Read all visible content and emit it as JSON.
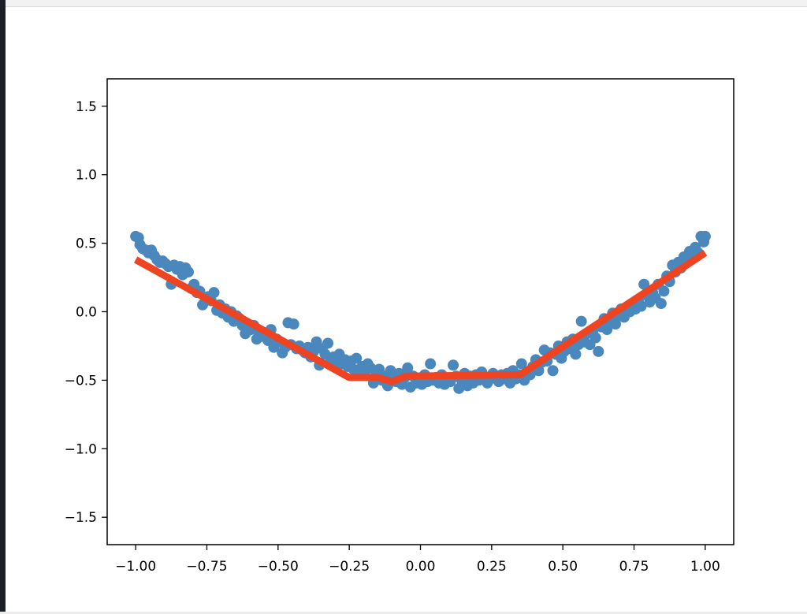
{
  "colors": {
    "scatter": "#4a87bd",
    "line": "#ee4422",
    "axes": "#000000"
  },
  "chart_data": {
    "type": "scatter",
    "title": "",
    "xlabel": "",
    "ylabel": "",
    "xlim": [
      -1.1,
      1.1
    ],
    "ylim": [
      -1.7,
      1.7
    ],
    "xticks": [
      -1.0,
      -0.75,
      -0.5,
      -0.25,
      0.0,
      0.25,
      0.5,
      0.75,
      1.0
    ],
    "xtick_labels": [
      "−1.00",
      "−0.75",
      "−0.50",
      "−0.25",
      "0.00",
      "0.25",
      "0.50",
      "0.75",
      "1.00"
    ],
    "yticks": [
      1.5,
      1.0,
      0.5,
      0.0,
      -0.5,
      -1.0,
      -1.5
    ],
    "ytick_labels": [
      "1.5",
      "1.0",
      "0.5",
      "0.0",
      "−0.5",
      "−1.0",
      "−1.5"
    ],
    "grid": false,
    "series": [
      {
        "kind": "scatter",
        "points": [
          [
            -1.0,
            0.55
          ],
          [
            -0.99,
            0.54
          ],
          [
            -0.985,
            0.49
          ],
          [
            -0.975,
            0.46
          ],
          [
            -0.965,
            0.45
          ],
          [
            -0.955,
            0.43
          ],
          [
            -0.945,
            0.45
          ],
          [
            -0.935,
            0.41
          ],
          [
            -0.925,
            0.38
          ],
          [
            -0.915,
            0.36
          ],
          [
            -0.905,
            0.37
          ],
          [
            -0.895,
            0.35
          ],
          [
            -0.885,
            0.33
          ],
          [
            -0.875,
            0.2
          ],
          [
            -0.865,
            0.34
          ],
          [
            -0.855,
            0.31
          ],
          [
            -0.845,
            0.33
          ],
          [
            -0.835,
            0.27
          ],
          [
            -0.825,
            0.32
          ],
          [
            -0.815,
            0.29
          ],
          [
            -0.805,
            0.17
          ],
          [
            -0.795,
            0.2
          ],
          [
            -0.785,
            0.14
          ],
          [
            -0.775,
            0.15
          ],
          [
            -0.765,
            0.05
          ],
          [
            -0.755,
            0.09
          ],
          [
            -0.745,
            0.11
          ],
          [
            -0.735,
            0.08
          ],
          [
            -0.725,
            0.14
          ],
          [
            -0.715,
            0.01
          ],
          [
            -0.705,
            0.05
          ],
          [
            -0.695,
            -0.01
          ],
          [
            -0.685,
            0.02
          ],
          [
            -0.675,
            -0.04
          ],
          [
            -0.665,
            0.0
          ],
          [
            -0.655,
            -0.07
          ],
          [
            -0.645,
            -0.03
          ],
          [
            -0.635,
            -0.05
          ],
          [
            -0.625,
            -0.1
          ],
          [
            -0.615,
            -0.16
          ],
          [
            -0.605,
            -0.09
          ],
          [
            -0.595,
            -0.13
          ],
          [
            -0.585,
            -0.1
          ],
          [
            -0.575,
            -0.2
          ],
          [
            -0.565,
            -0.15
          ],
          [
            -0.555,
            -0.18
          ],
          [
            -0.545,
            -0.16
          ],
          [
            -0.535,
            -0.21
          ],
          [
            -0.525,
            -0.13
          ],
          [
            -0.515,
            -0.26
          ],
          [
            -0.505,
            -0.2
          ],
          [
            -0.495,
            -0.22
          ],
          [
            -0.485,
            -0.3
          ],
          [
            -0.475,
            -0.26
          ],
          [
            -0.465,
            -0.08
          ],
          [
            -0.455,
            -0.24
          ],
          [
            -0.445,
            -0.09
          ],
          [
            -0.435,
            -0.27
          ],
          [
            -0.425,
            -0.25
          ],
          [
            -0.415,
            -0.28
          ],
          [
            -0.405,
            -0.3
          ],
          [
            -0.395,
            -0.26
          ],
          [
            -0.385,
            -0.33
          ],
          [
            -0.375,
            -0.29
          ],
          [
            -0.365,
            -0.22
          ],
          [
            -0.355,
            -0.39
          ],
          [
            -0.345,
            -0.27
          ],
          [
            -0.335,
            -0.31
          ],
          [
            -0.325,
            -0.23
          ],
          [
            -0.315,
            -0.36
          ],
          [
            -0.305,
            -0.33
          ],
          [
            -0.295,
            -0.37
          ],
          [
            -0.285,
            -0.31
          ],
          [
            -0.275,
            -0.38
          ],
          [
            -0.265,
            -0.35
          ],
          [
            -0.255,
            -0.4
          ],
          [
            -0.245,
            -0.36
          ],
          [
            -0.235,
            -0.42
          ],
          [
            -0.225,
            -0.34
          ],
          [
            -0.215,
            -0.43
          ],
          [
            -0.205,
            -0.4
          ],
          [
            -0.195,
            -0.44
          ],
          [
            -0.185,
            -0.38
          ],
          [
            -0.175,
            -0.41
          ],
          [
            -0.165,
            -0.52
          ],
          [
            -0.155,
            -0.45
          ],
          [
            -0.145,
            -0.42
          ],
          [
            -0.135,
            -0.5
          ],
          [
            -0.125,
            -0.47
          ],
          [
            -0.115,
            -0.54
          ],
          [
            -0.105,
            -0.43
          ],
          [
            -0.095,
            -0.49
          ],
          [
            -0.085,
            -0.51
          ],
          [
            -0.075,
            -0.45
          ],
          [
            -0.065,
            -0.53
          ],
          [
            -0.055,
            -0.48
          ],
          [
            -0.045,
            -0.41
          ],
          [
            -0.035,
            -0.55
          ],
          [
            -0.025,
            -0.47
          ],
          [
            -0.015,
            -0.52
          ],
          [
            -0.005,
            -0.49
          ],
          [
            0.005,
            -0.53
          ],
          [
            0.015,
            -0.46
          ],
          [
            0.025,
            -0.51
          ],
          [
            0.035,
            -0.38
          ],
          [
            0.045,
            -0.5
          ],
          [
            0.055,
            -0.48
          ],
          [
            0.065,
            -0.52
          ],
          [
            0.075,
            -0.46
          ],
          [
            0.085,
            -0.53
          ],
          [
            0.095,
            -0.49
          ],
          [
            0.105,
            -0.51
          ],
          [
            0.115,
            -0.39
          ],
          [
            0.125,
            -0.47
          ],
          [
            0.135,
            -0.56
          ],
          [
            0.145,
            -0.5
          ],
          [
            0.155,
            -0.45
          ],
          [
            0.165,
            -0.54
          ],
          [
            0.175,
            -0.47
          ],
          [
            0.185,
            -0.52
          ],
          [
            0.195,
            -0.46
          ],
          [
            0.205,
            -0.5
          ],
          [
            0.215,
            -0.44
          ],
          [
            0.225,
            -0.48
          ],
          [
            0.235,
            -0.52
          ],
          [
            0.245,
            -0.49
          ],
          [
            0.255,
            -0.45
          ],
          [
            0.265,
            -0.47
          ],
          [
            0.275,
            -0.51
          ],
          [
            0.285,
            -0.46
          ],
          [
            0.295,
            -0.49
          ],
          [
            0.305,
            -0.45
          ],
          [
            0.315,
            -0.52
          ],
          [
            0.325,
            -0.43
          ],
          [
            0.335,
            -0.49
          ],
          [
            0.345,
            -0.46
          ],
          [
            0.355,
            -0.38
          ],
          [
            0.365,
            -0.5
          ],
          [
            0.375,
            -0.44
          ],
          [
            0.385,
            -0.46
          ],
          [
            0.395,
            -0.4
          ],
          [
            0.405,
            -0.35
          ],
          [
            0.415,
            -0.43
          ],
          [
            0.425,
            -0.37
          ],
          [
            0.435,
            -0.28
          ],
          [
            0.445,
            -0.36
          ],
          [
            0.455,
            -0.3
          ],
          [
            0.465,
            -0.43
          ],
          [
            0.475,
            -0.31
          ],
          [
            0.485,
            -0.25
          ],
          [
            0.495,
            -0.34
          ],
          [
            0.505,
            -0.29
          ],
          [
            0.515,
            -0.22
          ],
          [
            0.525,
            -0.27
          ],
          [
            0.535,
            -0.2
          ],
          [
            0.545,
            -0.31
          ],
          [
            0.555,
            -0.24
          ],
          [
            0.565,
            -0.07
          ],
          [
            0.575,
            -0.22
          ],
          [
            0.585,
            -0.16
          ],
          [
            0.595,
            -0.24
          ],
          [
            0.605,
            -0.14
          ],
          [
            0.615,
            -0.19
          ],
          [
            0.625,
            -0.29
          ],
          [
            0.635,
            -0.11
          ],
          [
            0.645,
            -0.05
          ],
          [
            0.655,
            -0.13
          ],
          [
            0.665,
            -0.07
          ],
          [
            0.675,
            -0.01
          ],
          [
            0.685,
            -0.09
          ],
          [
            0.695,
            -0.03
          ],
          [
            0.705,
            0.02
          ],
          [
            0.715,
            -0.04
          ],
          [
            0.725,
            0.03
          ],
          [
            0.735,
            0.0
          ],
          [
            0.745,
            0.06
          ],
          [
            0.755,
            0.02
          ],
          [
            0.765,
            0.08
          ],
          [
            0.775,
            0.04
          ],
          [
            0.785,
            0.2
          ],
          [
            0.795,
            0.12
          ],
          [
            0.805,
            0.07
          ],
          [
            0.815,
            0.14
          ],
          [
            0.825,
            0.1
          ],
          [
            0.835,
            0.2
          ],
          [
            0.845,
            0.06
          ],
          [
            0.855,
            0.15
          ],
          [
            0.865,
            0.26
          ],
          [
            0.875,
            0.22
          ],
          [
            0.885,
            0.34
          ],
          [
            0.895,
            0.29
          ],
          [
            0.905,
            0.36
          ],
          [
            0.915,
            0.32
          ],
          [
            0.925,
            0.4
          ],
          [
            0.935,
            0.38
          ],
          [
            0.945,
            0.44
          ],
          [
            0.955,
            0.41
          ],
          [
            0.965,
            0.47
          ],
          [
            0.975,
            0.43
          ],
          [
            0.985,
            0.55
          ],
          [
            0.995,
            0.51
          ],
          [
            1.0,
            0.55
          ]
        ]
      },
      {
        "kind": "line",
        "points": [
          [
            -1.0,
            0.38
          ],
          [
            -0.25,
            -0.48
          ],
          [
            -0.15,
            -0.48
          ],
          [
            -0.1,
            -0.51
          ],
          [
            -0.05,
            -0.47
          ],
          [
            0.35,
            -0.46
          ],
          [
            1.0,
            0.43
          ]
        ]
      }
    ]
  }
}
